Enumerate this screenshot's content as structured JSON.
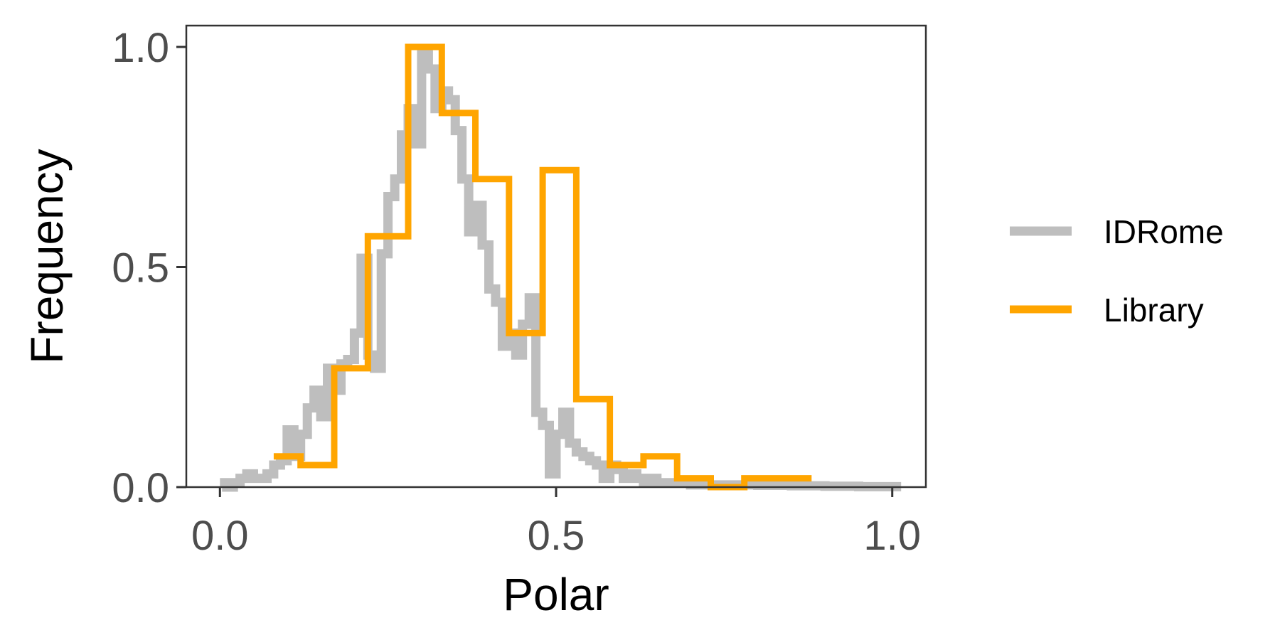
{
  "chart_data": {
    "type": "line",
    "subtype": "step-histogram",
    "title": "",
    "xlabel": "Polar",
    "ylabel": "Frequency",
    "xlim": [
      -0.05,
      1.05
    ],
    "ylim": [
      0,
      1.0
    ],
    "x_ticks": [
      0.0,
      0.5,
      1.0
    ],
    "x_tick_labels": [
      "0.0",
      "0.5",
      "1.0"
    ],
    "y_ticks": [
      0.0,
      0.5,
      1.0
    ],
    "y_tick_labels": [
      "0.0",
      "0.5",
      "1.0"
    ],
    "grid": false,
    "legend_position": "right",
    "series": [
      {
        "name": "IDRome",
        "color": "#bebebe",
        "x": [
          0.0,
          0.01,
          0.02,
          0.03,
          0.04,
          0.05,
          0.06,
          0.07,
          0.08,
          0.09,
          0.1,
          0.11,
          0.12,
          0.13,
          0.14,
          0.15,
          0.16,
          0.17,
          0.18,
          0.19,
          0.2,
          0.21,
          0.22,
          0.23,
          0.24,
          0.25,
          0.26,
          0.27,
          0.28,
          0.29,
          0.3,
          0.31,
          0.32,
          0.33,
          0.34,
          0.35,
          0.36,
          0.37,
          0.38,
          0.39,
          0.4,
          0.41,
          0.42,
          0.43,
          0.44,
          0.45,
          0.46,
          0.47,
          0.48,
          0.49,
          0.5,
          0.51,
          0.52,
          0.53,
          0.54,
          0.55,
          0.56,
          0.57,
          0.58,
          0.59,
          0.6,
          0.61,
          0.62,
          0.63,
          0.64,
          0.65,
          0.66,
          0.67,
          0.68,
          0.69,
          0.7,
          0.75,
          0.8,
          0.85,
          0.9,
          0.95,
          1.0
        ],
        "values": [
          0.01,
          0.0,
          0.01,
          0.02,
          0.03,
          0.02,
          0.02,
          0.03,
          0.05,
          0.06,
          0.13,
          0.07,
          0.12,
          0.18,
          0.22,
          0.16,
          0.27,
          0.22,
          0.28,
          0.29,
          0.35,
          0.52,
          0.3,
          0.27,
          0.53,
          0.66,
          0.7,
          0.8,
          0.86,
          0.78,
          0.99,
          0.95,
          0.86,
          0.9,
          0.88,
          0.81,
          0.7,
          0.58,
          0.64,
          0.55,
          0.45,
          0.42,
          0.32,
          0.35,
          0.3,
          0.37,
          0.43,
          0.17,
          0.14,
          0.03,
          0.12,
          0.17,
          0.1,
          0.08,
          0.07,
          0.06,
          0.05,
          0.02,
          0.05,
          0.04,
          0.02,
          0.03,
          0.02,
          0.01,
          0.02,
          0.01,
          0.01,
          0.01,
          0.01,
          0.01,
          0.005,
          0.005,
          0.004,
          0.003,
          0.002,
          0.001,
          0.001
        ]
      },
      {
        "name": "Library",
        "color": "#ffa500",
        "x": [
          0.08,
          0.12,
          0.17,
          0.22,
          0.28,
          0.33,
          0.38,
          0.43,
          0.48,
          0.53,
          0.58,
          0.63,
          0.68,
          0.73,
          0.78,
          0.83
        ],
        "values": [
          0.07,
          0.05,
          0.27,
          0.57,
          1.0,
          0.85,
          0.7,
          0.35,
          0.72,
          0.2,
          0.05,
          0.07,
          0.02,
          0.0,
          0.02,
          0.02
        ]
      }
    ]
  }
}
